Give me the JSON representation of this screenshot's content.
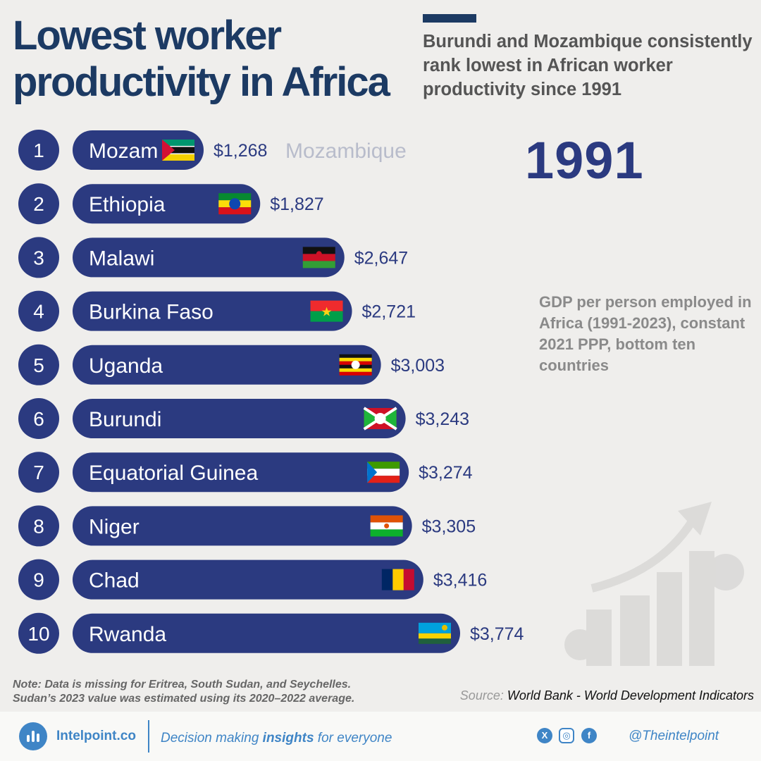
{
  "header": {
    "title_line1": "Lowest worker",
    "title_line2": "productivity in Africa",
    "subtitle": "Burundi and Mozambique consistently rank lowest in African worker productivity since 1991"
  },
  "current_year": "1991",
  "description": "GDP per person employed in Africa (1991-2023), constant 2021 PPP, bottom ten countries",
  "ghost_label": "Mozambique",
  "chart_data": {
    "type": "bar",
    "orientation": "horizontal",
    "title": "Lowest worker productivity in Africa",
    "subtitle": "Burundi and Mozambique consistently rank lowest in African worker productivity since 1991",
    "year": "1991",
    "ranks": [
      1,
      2,
      3,
      4,
      5,
      6,
      7,
      8,
      9,
      10
    ],
    "categories": [
      "Mozambique",
      "Ethiopia",
      "Malawi",
      "Burkina Faso",
      "Uganda",
      "Burundi",
      "Equatorial Guinea",
      "Niger",
      "Chad",
      "Rwanda"
    ],
    "bar_labels": [
      "Mozam",
      "Ethiopia",
      "Malawi",
      "Burkina Faso",
      "Uganda",
      "Burundi",
      "Equatorial Guinea",
      "Niger",
      "Chad",
      "Rwanda"
    ],
    "values": [
      1268,
      1827,
      2647,
      2721,
      3003,
      3243,
      3274,
      3305,
      3416,
      3774
    ],
    "value_labels": [
      "$1,268",
      "$1,827",
      "$2,647",
      "$2,721",
      "$3,003",
      "$3,243",
      "$3,274",
      "$3,305",
      "$3,416",
      "$3,774"
    ],
    "flag_icons": [
      "mozambique-flag-icon",
      "ethiopia-flag-icon",
      "malawi-flag-icon",
      "burkina-faso-flag-icon",
      "uganda-flag-icon",
      "burundi-flag-icon",
      "equatorial-guinea-flag-icon",
      "niger-flag-icon",
      "chad-flag-icon",
      "rwanda-flag-icon"
    ],
    "unit": "GDP per person employed, constant 2021 PPP $",
    "bar_color": "#2b3a80",
    "rank_circle_color": "#2b3a80"
  },
  "note": {
    "line1": "Note: Data is missing for Eritrea, South Sudan, and Seychelles.",
    "line2": "Sudan’s 2023 value was estimated using its 2020–2022 average."
  },
  "source": {
    "label": "Source:",
    "text": "World Bank - World Development Indicators"
  },
  "footer": {
    "brand": "Intelpoint.co",
    "tagline_pre": "Decision making ",
    "tagline_bold": "insights",
    "tagline_post": " for everyone",
    "handle": "@Theintelpoint",
    "logo_icon": "bar-chart-logo-icon",
    "social_icons": [
      "x-icon",
      "instagram-icon",
      "facebook-icon"
    ],
    "accent_color": "#3f85c6"
  }
}
